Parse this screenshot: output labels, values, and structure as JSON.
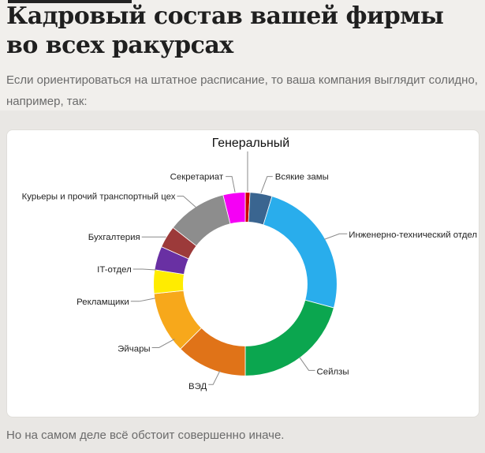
{
  "article": {
    "title": "Кадровый состав вашей фирмы во всех ракурсах",
    "intro": "Если ориентироваться на штатное расписание, то ваша компания выглядит солидно, например, так:",
    "outro": "Но на самом деле всё обстоит совершенно иначе."
  },
  "chart_data": {
    "type": "pie",
    "subtype": "donut",
    "title": "",
    "legend_position": "callout-labels",
    "donut_hole_ratio": 0.675,
    "slices": [
      {
        "id": "general",
        "label": "Генеральный",
        "percent": 0.8,
        "start_deg": 0,
        "end_deg": 3,
        "color": "#CC0000"
      },
      {
        "id": "deputies",
        "label": "Всякие замы",
        "percent": 3.9,
        "start_deg": 3,
        "end_deg": 17,
        "color": "#3A6590"
      },
      {
        "id": "engineering",
        "label": "Инженерно-технический отдел",
        "percent": 24.4,
        "start_deg": 17,
        "end_deg": 105,
        "color": "#29ADEC"
      },
      {
        "id": "sales",
        "label": "Сейлзы",
        "percent": 20.8,
        "start_deg": 105,
        "end_deg": 180,
        "color": "#0BA64F"
      },
      {
        "id": "ved",
        "label": "ВЭД",
        "percent": 12.5,
        "start_deg": 180,
        "end_deg": 225,
        "color": "#E07318"
      },
      {
        "id": "hr",
        "label": "Эйчары",
        "percent": 10.8,
        "start_deg": 225,
        "end_deg": 264,
        "color": "#F7A81B"
      },
      {
        "id": "advertising",
        "label": "Рекламщики",
        "percent": 4.2,
        "start_deg": 264,
        "end_deg": 279,
        "color": "#FFEC00"
      },
      {
        "id": "it",
        "label": "IT-отдел",
        "percent": 4.2,
        "start_deg": 279,
        "end_deg": 294,
        "color": "#6930A3"
      },
      {
        "id": "accounting",
        "label": "Бухгалтерия",
        "percent": 3.9,
        "start_deg": 294,
        "end_deg": 308,
        "color": "#9C3A3A"
      },
      {
        "id": "couriers",
        "label": "Курьеры и прочий транспортный цех",
        "percent": 10.6,
        "start_deg": 308,
        "end_deg": 346,
        "color": "#8D8D8D"
      },
      {
        "id": "secretariat",
        "label": "Секретариат",
        "percent": 3.9,
        "start_deg": 346,
        "end_deg": 360,
        "color": "#F500F5"
      }
    ],
    "colors": {
      "page_background": "#E9E7E4",
      "header_background": "#F1EFEC",
      "card_background": "#FFFFFF",
      "title_text": "#1F1F1F",
      "body_text": "#6B6B6B",
      "label_text": "#232323",
      "leader_line": "#8A8A8A"
    }
  }
}
